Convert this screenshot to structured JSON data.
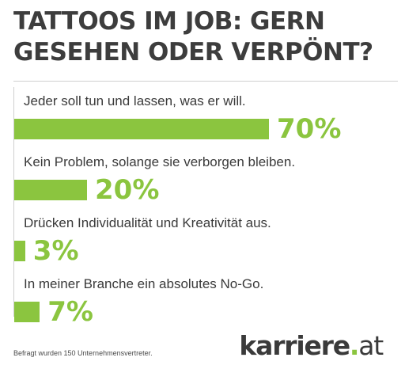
{
  "chart_data": {
    "type": "bar",
    "title": "TATTOOS IM JOB: GERN\nGESEHEN ODER VERPÖNT?",
    "categories": [
      "Jeder soll tun und lassen, was er will.",
      "Kein Problem, solange sie verborgen bleiben.",
      "Drücken Individualität und Kreativität aus.",
      "In meiner Branche ein absolutes No-Go."
    ],
    "values": [
      70,
      20,
      3,
      7
    ],
    "value_labels": [
      "70%",
      "20%",
      "3%",
      "7%"
    ],
    "unit": "%",
    "orientation": "horizontal",
    "bar_color": "#8bc53f",
    "grid": false,
    "legend": "none"
  },
  "footnote": "Befragt wurden 150 Unternehmensvertreter.",
  "logo": {
    "name": "karriere",
    "dot": ".",
    "tld": "at"
  }
}
